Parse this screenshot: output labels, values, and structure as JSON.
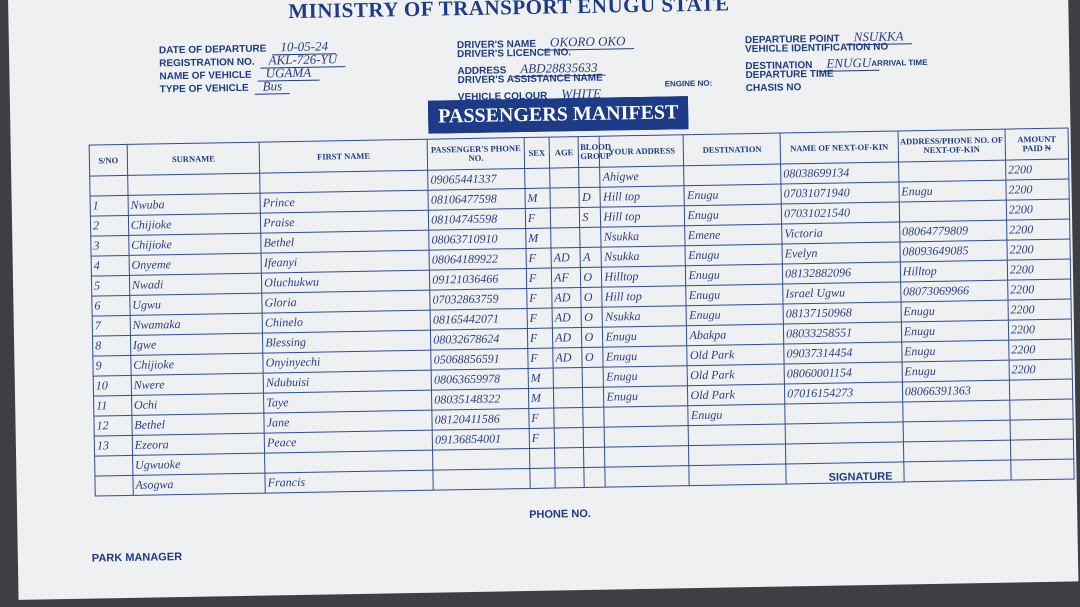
{
  "header": {
    "title": "MINISTRY OF TRANSPORT ENUGU STATE"
  },
  "fields": [
    [
      {
        "label": "DATE OF DEPARTURE",
        "value": "10-05-24"
      },
      {
        "label": "REGISTRATION NO.",
        "value": "AKL-726-YU"
      },
      {
        "label": "NAME OF VEHICLE",
        "value": "UGAMA"
      },
      {
        "label": "TYPE OF VEHICLE",
        "value": "Bus"
      }
    ],
    [
      {
        "label": "DRIVER'S NAME",
        "value": "OKORO OKO"
      },
      {
        "label": "DRIVER'S LICENCE NO."
      },
      {
        "label": "ADDRESS",
        "value": "ABD28835633"
      },
      {
        "label": "DRIVER'S ASSISTANCE NAME"
      },
      {
        "label": "VEHICLE COLOUR",
        "value": "WHITE"
      }
    ],
    [
      {
        "label": "DEPARTURE POINT",
        "value": "NSUKKA"
      },
      {
        "label": "VEHICLE IDENTIFICATION NO"
      },
      {
        "label": "DESTINATION",
        "value": "ENUGU"
      },
      {
        "label": "DEPARTURE TIME"
      },
      {
        "label": "CHASIS NO"
      }
    ]
  ],
  "extra_labels": {
    "engine_no": "ENGINE NO:",
    "arrival_time": "ARRIVAL TIME"
  },
  "manifest": {
    "title": "PASSENGERS MANIFEST",
    "columns": [
      "S/NO",
      "SURNAME",
      "FIRST NAME",
      "PASSENGER'S PHONE NO.",
      "SEX",
      "AGE",
      "BLOOD GROUP",
      "YOUR ADDRESS",
      "DESTINATION",
      "NAME OF NEXT-OF-KIN",
      "ADDRESS/PHONE NO. OF NEXT-OF-KIN",
      "AMOUNT PAID ₦"
    ],
    "rows": [
      [
        null,
        null,
        null,
        "09065441337",
        null,
        null,
        null,
        "Ahigwe",
        null,
        "08038699134",
        null,
        "2200"
      ],
      [
        "1",
        "Nwuba",
        "Prince",
        "08106477598",
        "M",
        null,
        "D",
        "Hill top",
        "Enugu",
        "07031071940",
        "Enugu",
        "2200"
      ],
      [
        "2",
        "Chijioke",
        "Praise",
        "08104745598",
        "F",
        null,
        "S",
        "Hill top",
        "Enugu",
        "07031021540",
        null,
        "2200"
      ],
      [
        "3",
        "Chijioke",
        "Bethel",
        "08063710910",
        "M",
        null,
        null,
        "Nsukka",
        "Emene",
        "Victoria",
        "08064779809",
        "2200"
      ],
      [
        "4",
        "Onyeme",
        "Ifeanyi",
        "08064189922",
        "F",
        "AD",
        "A",
        "Nsukka",
        "Enugu",
        "Evelyn",
        "08093649085",
        "2200"
      ],
      [
        "5",
        "Nwadi",
        "Oluchukwu",
        "09121036466",
        "F",
        "AF",
        "O",
        "Hilltop",
        "Enugu",
        "08132882096",
        "Hilltop",
        "2200"
      ],
      [
        "6",
        "Ugwu",
        "Gloria",
        "07032863759",
        "F",
        "AD",
        "O",
        "Hill top",
        "Enugu",
        "Israel Ugwu",
        "08073069966",
        "2200"
      ],
      [
        "7",
        "Nwamaka",
        "Chinelo",
        "08165442071",
        "F",
        "AD",
        "O",
        "Nsukka",
        "Enugu",
        "08137150968",
        "Enugu",
        "2200"
      ],
      [
        "8",
        "Igwe",
        "Blessing",
        "08032678624",
        "F",
        "AD",
        "O",
        "Enugu",
        "Abakpa",
        "08033258551",
        "Enugu",
        "2200"
      ],
      [
        "9",
        "Chijioke",
        "Onyinyechi",
        "05068856591",
        "F",
        "AD",
        "O",
        "Enugu",
        "Old Park",
        "09037314454",
        "Enugu",
        "2200"
      ],
      [
        "10",
        "Nwere",
        "Ndubuisi",
        "08063659978",
        "M",
        null,
        null,
        "Enugu",
        "Old Park",
        "08060001154",
        "Enugu",
        "2200"
      ],
      [
        "11",
        "Ochi",
        "Taye",
        "08035148322",
        "M",
        null,
        null,
        "Enugu",
        "Old Park",
        "07016154273",
        "08066391363",
        null
      ],
      [
        "12",
        "Bethel",
        "Jane",
        "08120411586",
        "F",
        null,
        null,
        null,
        "Enugu",
        null,
        null,
        null
      ],
      [
        "13",
        "Ezeora",
        "Peace",
        "09136854001",
        "F",
        null,
        null,
        null,
        null,
        null,
        null,
        null
      ],
      [
        null,
        "Ugwuoke",
        null,
        null,
        null,
        null,
        null,
        null,
        null,
        null,
        null,
        null
      ],
      [
        null,
        "Asogwa",
        "Francis",
        null,
        null,
        null,
        null,
        null,
        null,
        null,
        null,
        null
      ]
    ]
  },
  "footer": {
    "signature": "SIGNATURE",
    "phone": "PHONE NO.",
    "manager": "PARK MANAGER"
  }
}
